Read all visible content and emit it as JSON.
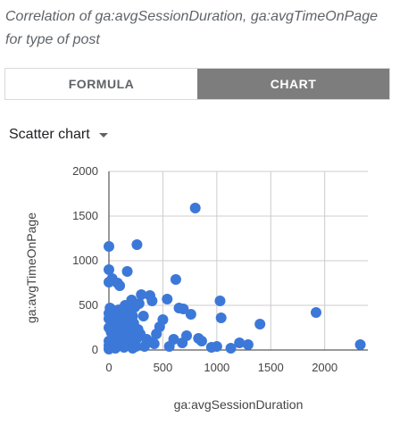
{
  "header": {
    "title": "Correlation of ga:avgSessionDuration, ga:avgTimeOnPage for type of post"
  },
  "tabs": [
    {
      "label": "FORMULA",
      "active": false
    },
    {
      "label": "CHART",
      "active": true
    }
  ],
  "chart_selector": {
    "label": "Scatter chart",
    "icon": "caret-down-icon"
  },
  "colors": {
    "point": "#3c78d8",
    "axis": "#333333",
    "grid": "#cccccc",
    "active_tab": "#7d7d7d"
  },
  "chart_data": {
    "type": "scatter",
    "title": "",
    "xlabel": "ga:avgSessionDuration",
    "ylabel": "ga:avgTimeOnPage",
    "xlim": [
      0,
      2400
    ],
    "ylim": [
      0,
      2000
    ],
    "x_ticks": [
      0,
      500,
      1000,
      1500,
      2000
    ],
    "y_ticks": [
      0,
      500,
      1000,
      1500,
      2000
    ],
    "grid": true,
    "legend": "none",
    "points": [
      [
        0,
        1160
      ],
      [
        0,
        900
      ],
      [
        0,
        760
      ],
      [
        30,
        800
      ],
      [
        80,
        750
      ],
      [
        100,
        720
      ],
      [
        170,
        880
      ],
      [
        260,
        1180
      ],
      [
        800,
        1590
      ],
      [
        620,
        790
      ],
      [
        1030,
        550
      ],
      [
        1040,
        360
      ],
      [
        1920,
        420
      ],
      [
        1400,
        290
      ],
      [
        2330,
        60
      ],
      [
        1290,
        60
      ],
      [
        1210,
        80
      ],
      [
        1130,
        20
      ],
      [
        1000,
        40
      ],
      [
        950,
        30
      ],
      [
        860,
        100
      ],
      [
        830,
        130
      ],
      [
        760,
        400
      ],
      [
        690,
        460
      ],
      [
        650,
        470
      ],
      [
        540,
        570
      ],
      [
        500,
        340
      ],
      [
        470,
        260
      ],
      [
        440,
        180
      ],
      [
        400,
        550
      ],
      [
        380,
        610
      ],
      [
        350,
        120
      ],
      [
        320,
        380
      ],
      [
        300,
        620
      ],
      [
        280,
        520
      ],
      [
        270,
        230
      ],
      [
        260,
        130
      ],
      [
        240,
        480
      ],
      [
        230,
        300
      ],
      [
        220,
        380
      ],
      [
        210,
        560
      ],
      [
        200,
        200
      ],
      [
        190,
        420
      ],
      [
        180,
        60
      ],
      [
        170,
        320
      ],
      [
        160,
        250
      ],
      [
        150,
        500
      ],
      [
        140,
        170
      ],
      [
        130,
        400
      ],
      [
        120,
        310
      ],
      [
        110,
        90
      ],
      [
        100,
        230
      ],
      [
        90,
        450
      ],
      [
        80,
        380
      ],
      [
        70,
        150
      ],
      [
        60,
        280
      ],
      [
        50,
        440
      ],
      [
        40,
        60
      ],
      [
        30,
        330
      ],
      [
        20,
        200
      ],
      [
        10,
        470
      ],
      [
        0,
        100
      ],
      [
        0,
        250
      ],
      [
        0,
        350
      ],
      [
        0,
        50
      ],
      [
        0,
        410
      ],
      [
        60,
        20
      ],
      [
        140,
        30
      ],
      [
        220,
        20
      ],
      [
        330,
        40
      ],
      [
        420,
        70
      ],
      [
        600,
        120
      ],
      [
        680,
        80
      ],
      [
        720,
        160
      ],
      [
        560,
        40
      ],
      [
        380,
        90
      ],
      [
        290,
        180
      ],
      [
        250,
        40
      ],
      [
        170,
        120
      ],
      [
        110,
        170
      ],
      [
        70,
        60
      ],
      [
        40,
        150
      ],
      [
        20,
        80
      ],
      [
        10,
        30
      ],
      [
        0,
        10
      ]
    ]
  },
  "axes": {
    "y_tick_labels": [
      "2000",
      "1500",
      "1000",
      "500",
      "0"
    ],
    "x_tick_labels": [
      "0",
      "500",
      "1000",
      "1500",
      "2000"
    ]
  }
}
